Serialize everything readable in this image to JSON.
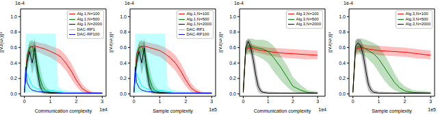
{
  "chart_data": [
    {
      "type": "line",
      "x_label": "Communication complexity",
      "y_label": "||∇J(ωₜ)||²",
      "annotations": {
        "x": "1e4",
        "y": "1e-4"
      },
      "xlim": [
        -0.15,
        3.15
      ],
      "ylim": [
        -0.03,
        1.1
      ],
      "xticks": [
        0,
        1,
        2,
        3
      ],
      "yticks": [
        {
          "value": 0,
          "label": "0.0"
        },
        0.2,
        0.4,
        0.6,
        0.8,
        {
          "value": 1,
          "label": "1.0"
        }
      ],
      "legend": "upper right",
      "series": [
        {
          "name": "Alg.1,N=100",
          "color": "#ff0000",
          "x": [
            0,
            0.1,
            0.2,
            0.4,
            0.6,
            0.8,
            1.0,
            1.2,
            1.4,
            1.6,
            1.8,
            2.0,
            2.2,
            2.4,
            2.6,
            2.8,
            3.0
          ],
          "values": [
            0.02,
            0.5,
            0.6,
            0.62,
            0.6,
            0.58,
            0.55,
            0.52,
            0.48,
            0.4,
            0.3,
            0.18,
            0.08,
            0.03,
            0.01,
            0.01,
            0.01
          ],
          "lower": [
            0,
            0.45,
            0.52,
            0.55,
            0.53,
            0.5,
            0.47,
            0.43,
            0.38,
            0.3,
            0.2,
            0.1,
            0.03,
            0,
            0,
            0,
            0
          ],
          "upper": [
            0.05,
            0.55,
            0.67,
            0.68,
            0.66,
            0.65,
            0.62,
            0.6,
            0.57,
            0.5,
            0.4,
            0.27,
            0.14,
            0.07,
            0.03,
            0.02,
            0.02
          ]
        },
        {
          "name": "Alg.1,N=500",
          "color": "#008000",
          "x": [
            0,
            0.1,
            0.2,
            0.3,
            0.4,
            0.5,
            0.6,
            0.7,
            0.8,
            0.9,
            1.0,
            1.2,
            1.5,
            2.0,
            3.0
          ],
          "values": [
            0.02,
            0.45,
            0.6,
            0.62,
            0.5,
            0.35,
            0.2,
            0.1,
            0.05,
            0.03,
            0.02,
            0.01,
            0.01,
            0.01,
            0.01
          ],
          "lower": [
            0,
            0.38,
            0.5,
            0.5,
            0.35,
            0.2,
            0.08,
            0.03,
            0,
            0,
            0,
            0,
            0,
            0,
            0
          ],
          "upper": [
            0.05,
            0.52,
            0.68,
            0.7,
            0.65,
            0.5,
            0.35,
            0.2,
            0.12,
            0.07,
            0.05,
            0.03,
            0.02,
            0.02,
            0.02
          ]
        },
        {
          "name": "Alg.1,N=2000",
          "color": "#000000",
          "x": [
            0,
            0.1,
            0.2,
            0.3,
            0.4,
            0.5,
            0.6,
            0.7,
            0.8,
            1.0,
            1.5,
            2.0,
            3.0
          ],
          "values": [
            0.02,
            0.4,
            0.55,
            0.4,
            0.6,
            0.3,
            0.1,
            0.03,
            0.02,
            0.01,
            0.01,
            0.01,
            0.01
          ],
          "lower": [
            0,
            0.3,
            0.45,
            0.25,
            0.4,
            0.15,
            0.03,
            0,
            0,
            0,
            0,
            0,
            0
          ],
          "upper": [
            0.05,
            0.5,
            0.65,
            0.55,
            0.72,
            0.45,
            0.2,
            0.08,
            0.05,
            0.03,
            0.02,
            0.02,
            0.02
          ]
        },
        {
          "name": "DAC-RP1",
          "color": "#00ffff",
          "x": [
            0,
            0.05,
            0.3,
            0.6,
            0.9,
            1.2,
            1.3,
            1.5,
            2.0,
            3.0
          ],
          "values": [
            0.02,
            0.3,
            0.1,
            0.05,
            0.05,
            0.04,
            0.03,
            0.02,
            0.01,
            0.01
          ],
          "lower": [
            0,
            0.02,
            0.02,
            0.02,
            0.02,
            0.02,
            0,
            0,
            0,
            0
          ],
          "upper": [
            0.05,
            0.78,
            0.78,
            0.78,
            0.78,
            0.78,
            0.1,
            0.05,
            0.03,
            0.02
          ]
        },
        {
          "name": "DAC-RP100",
          "color": "#0000ff",
          "x": [
            0,
            0.05,
            0.1,
            0.2,
            0.3,
            0.5,
            0.8,
            1.0,
            1.5,
            2.0,
            3.0
          ],
          "values": [
            0.02,
            0.35,
            0.15,
            0.08,
            0.05,
            0.03,
            0.02,
            0.02,
            0.01,
            0.01,
            0.01
          ]
        }
      ]
    },
    {
      "type": "line",
      "x_label": "Sample complexity",
      "y_label": "||∇J(ωₜ)||²",
      "annotations": {
        "x": "1e5",
        "y": "1e-4"
      },
      "xlim": [
        -0.15,
        3.15
      ],
      "ylim": [
        -0.03,
        1.1
      ],
      "xticks": [
        0,
        1,
        2,
        3
      ],
      "yticks": [
        {
          "value": 0,
          "label": "0.0"
        },
        0.2,
        0.4,
        0.6,
        0.8,
        {
          "value": 1,
          "label": "1.0"
        }
      ],
      "legend": "upper right",
      "series": [
        {
          "name": "Alg.1,N=100",
          "color": "#ff0000",
          "x": [
            0,
            0.1,
            0.2,
            0.4,
            0.6,
            0.8,
            1.0,
            1.2,
            1.4,
            1.6,
            1.8,
            2.0,
            2.2,
            2.4,
            2.6,
            2.8,
            3.0
          ],
          "values": [
            0.02,
            0.52,
            0.6,
            0.62,
            0.6,
            0.58,
            0.56,
            0.52,
            0.47,
            0.4,
            0.3,
            0.18,
            0.08,
            0.03,
            0.01,
            0.01,
            0.01
          ],
          "lower": [
            0,
            0.46,
            0.52,
            0.55,
            0.53,
            0.5,
            0.48,
            0.43,
            0.37,
            0.3,
            0.2,
            0.1,
            0.03,
            0,
            0,
            0,
            0
          ],
          "upper": [
            0.05,
            0.57,
            0.67,
            0.68,
            0.66,
            0.65,
            0.63,
            0.6,
            0.56,
            0.5,
            0.4,
            0.27,
            0.14,
            0.07,
            0.03,
            0.02,
            0.02
          ]
        },
        {
          "name": "Alg.1,N=500",
          "color": "#008000",
          "x": [
            0,
            0.1,
            0.2,
            0.3,
            0.4,
            0.5,
            0.6,
            0.7,
            0.8,
            0.9,
            1.0,
            1.2,
            1.5,
            2.0,
            3.0
          ],
          "values": [
            0.02,
            0.45,
            0.6,
            0.62,
            0.52,
            0.36,
            0.2,
            0.1,
            0.05,
            0.03,
            0.02,
            0.01,
            0.01,
            0.01,
            0.01
          ],
          "lower": [
            0,
            0.38,
            0.5,
            0.5,
            0.37,
            0.2,
            0.08,
            0.03,
            0,
            0,
            0,
            0,
            0,
            0,
            0
          ],
          "upper": [
            0.05,
            0.52,
            0.68,
            0.7,
            0.66,
            0.5,
            0.35,
            0.2,
            0.12,
            0.07,
            0.05,
            0.03,
            0.02,
            0.02,
            0.02
          ]
        },
        {
          "name": "Alg.1,N=2000",
          "color": "#000000",
          "x": [
            0,
            0.1,
            0.2,
            0.3,
            0.4,
            0.5,
            0.6,
            0.7,
            0.8,
            1.0,
            1.5,
            2.0,
            3.0
          ],
          "values": [
            0.02,
            0.4,
            0.55,
            0.4,
            0.6,
            0.3,
            0.1,
            0.03,
            0.02,
            0.01,
            0.01,
            0.01,
            0.01
          ],
          "lower": [
            0,
            0.3,
            0.45,
            0.25,
            0.4,
            0.15,
            0.03,
            0,
            0,
            0,
            0,
            0,
            0
          ],
          "upper": [
            0.05,
            0.5,
            0.65,
            0.55,
            0.72,
            0.45,
            0.2,
            0.08,
            0.05,
            0.03,
            0.02,
            0.02,
            0.02
          ]
        },
        {
          "name": "DAC-RP1",
          "color": "#00ffff",
          "x": [
            0,
            0.05,
            0.3,
            0.6,
            0.9,
            1.2,
            1.3,
            1.5,
            2.0,
            3.0
          ],
          "values": [
            0.02,
            0.3,
            0.1,
            0.05,
            0.05,
            0.04,
            0.03,
            0.02,
            0.01,
            0.01
          ],
          "lower": [
            0,
            0.02,
            0.02,
            0.02,
            0.02,
            0.02,
            0,
            0,
            0,
            0
          ],
          "upper": [
            0.05,
            0.78,
            0.78,
            0.78,
            0.78,
            0.78,
            0.1,
            0.05,
            0.03,
            0.02
          ]
        },
        {
          "name": "DAC-RP100",
          "color": "#0000ff",
          "x": [
            0,
            0.05,
            0.1,
            0.2,
            0.3,
            0.5,
            0.8,
            1.0,
            1.5,
            2.0,
            3.0
          ],
          "values": [
            0.02,
            0.35,
            0.15,
            0.08,
            0.05,
            0.03,
            0.02,
            0.02,
            0.01,
            0.01,
            0.01
          ]
        }
      ]
    },
    {
      "type": "line",
      "x_label": "Communication complexity",
      "y_label": "||∇J(ωₜ)||²",
      "annotations": {
        "x": "1e4",
        "y": "1e-4"
      },
      "xlim": [
        -0.15,
        3.3
      ],
      "ylim": [
        -0.03,
        1.1
      ],
      "xticks": [
        0,
        1,
        2,
        3
      ],
      "yticks": [
        {
          "value": 0,
          "label": "0.0"
        },
        0.2,
        0.4,
        0.6,
        0.8,
        {
          "value": 1,
          "label": "1.0"
        }
      ],
      "legend": "upper right",
      "series": [
        {
          "name": "Alg.3,N=100",
          "color": "#ff0000",
          "x": [
            0,
            0.1,
            0.3,
            0.6,
            1.0,
            1.5,
            2.0,
            2.5,
            3.0
          ],
          "values": [
            0.02,
            0.58,
            0.6,
            0.57,
            0.55,
            0.53,
            0.52,
            0.51,
            0.5
          ],
          "lower": [
            0,
            0.52,
            0.55,
            0.53,
            0.5,
            0.47,
            0.46,
            0.45,
            0.45
          ],
          "upper": [
            0.05,
            0.63,
            0.65,
            0.62,
            0.6,
            0.59,
            0.58,
            0.57,
            0.56
          ]
        },
        {
          "name": "Alg.3,N=500",
          "color": "#008000",
          "x": [
            0,
            0.1,
            0.3,
            0.5,
            0.8,
            1.0,
            1.2,
            1.5,
            1.8,
            2.0,
            2.3,
            2.6,
            3.0
          ],
          "values": [
            0.02,
            0.6,
            0.62,
            0.6,
            0.58,
            0.55,
            0.48,
            0.35,
            0.2,
            0.1,
            0.05,
            0.02,
            0.01
          ],
          "lower": [
            0,
            0.5,
            0.52,
            0.5,
            0.45,
            0.4,
            0.3,
            0.18,
            0.08,
            0.03,
            0.01,
            0,
            0
          ],
          "upper": [
            0.05,
            0.68,
            0.72,
            0.7,
            0.7,
            0.68,
            0.63,
            0.5,
            0.35,
            0.22,
            0.12,
            0.05,
            0.03
          ]
        },
        {
          "name": "Alg.3,N=2000",
          "color": "#000000",
          "x": [
            0,
            0.1,
            0.2,
            0.3,
            0.4,
            0.5,
            0.6,
            0.7,
            0.8,
            1.0,
            1.5,
            2.0,
            3.0
          ],
          "values": [
            0.02,
            0.6,
            0.68,
            0.6,
            0.45,
            0.25,
            0.1,
            0.04,
            0.02,
            0.01,
            0.01,
            0.01,
            0.01
          ],
          "lower": [
            0,
            0.5,
            0.6,
            0.5,
            0.32,
            0.12,
            0.03,
            0,
            0,
            0,
            0,
            0,
            0
          ],
          "upper": [
            0.05,
            0.68,
            0.72,
            0.68,
            0.58,
            0.4,
            0.2,
            0.08,
            0.04,
            0.03,
            0.02,
            0.02,
            0.02
          ]
        }
      ]
    },
    {
      "type": "line",
      "x_label": "Sample complexity",
      "y_label": "||∇J(ωₜ)||²",
      "annotations": {
        "x": "1e5",
        "y": "1e-4"
      },
      "xlim": [
        -0.15,
        3.15
      ],
      "ylim": [
        -0.03,
        1.1
      ],
      "xticks": [
        0,
        1,
        2,
        3
      ],
      "yticks": [
        {
          "value": 0,
          "label": "0.0"
        },
        0.2,
        0.4,
        0.6,
        0.8,
        {
          "value": 1,
          "label": "1.0"
        }
      ],
      "legend": "upper right",
      "series": [
        {
          "name": "Alg.3,N=100",
          "color": "#ff0000",
          "x": [
            0,
            0.1,
            0.3,
            0.6,
            1.0,
            1.5,
            2.0,
            2.5,
            3.0
          ],
          "values": [
            0.02,
            0.58,
            0.6,
            0.58,
            0.56,
            0.55,
            0.54,
            0.52,
            0.5
          ],
          "lower": [
            0,
            0.52,
            0.55,
            0.53,
            0.5,
            0.49,
            0.48,
            0.46,
            0.45
          ],
          "upper": [
            0.05,
            0.63,
            0.65,
            0.63,
            0.62,
            0.61,
            0.6,
            0.58,
            0.56
          ]
        },
        {
          "name": "Alg.3,N=500",
          "color": "#008000",
          "x": [
            0,
            0.1,
            0.3,
            0.5,
            0.8,
            1.0,
            1.2,
            1.4,
            1.6,
            1.8,
            2.0,
            2.3,
            3.0
          ],
          "values": [
            0.02,
            0.6,
            0.62,
            0.58,
            0.52,
            0.45,
            0.35,
            0.25,
            0.15,
            0.08,
            0.04,
            0.02,
            0.01
          ],
          "lower": [
            0,
            0.5,
            0.52,
            0.48,
            0.38,
            0.28,
            0.18,
            0.1,
            0.05,
            0.02,
            0,
            0,
            0
          ],
          "upper": [
            0.05,
            0.68,
            0.72,
            0.7,
            0.66,
            0.62,
            0.52,
            0.4,
            0.27,
            0.16,
            0.1,
            0.05,
            0.03
          ]
        },
        {
          "name": "Alg.3,N=2000",
          "color": "#000000",
          "x": [
            0,
            0.1,
            0.2,
            0.3,
            0.4,
            0.5,
            0.6,
            0.7,
            0.8,
            1.0,
            1.5,
            2.0,
            3.0
          ],
          "values": [
            0.02,
            0.62,
            0.66,
            0.62,
            0.5,
            0.3,
            0.12,
            0.05,
            0.02,
            0.01,
            0.01,
            0.01,
            0.01
          ],
          "lower": [
            0,
            0.52,
            0.58,
            0.52,
            0.36,
            0.15,
            0.04,
            0,
            0,
            0,
            0,
            0,
            0
          ],
          "upper": [
            0.05,
            0.7,
            0.72,
            0.7,
            0.62,
            0.45,
            0.22,
            0.1,
            0.05,
            0.03,
            0.02,
            0.02,
            0.02
          ]
        }
      ]
    }
  ]
}
